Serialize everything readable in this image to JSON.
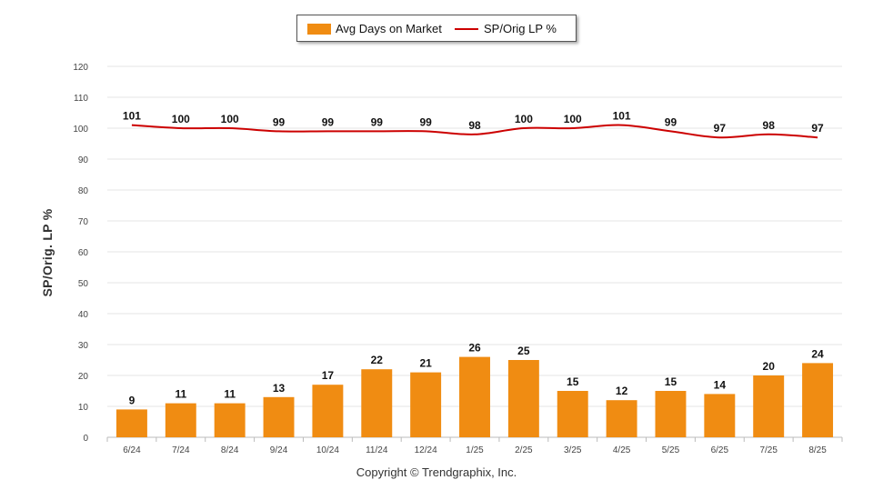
{
  "chart_data": {
    "type": "bar",
    "categories": [
      "6/24",
      "7/24",
      "8/24",
      "9/24",
      "10/24",
      "11/24",
      "12/24",
      "1/25",
      "2/25",
      "3/25",
      "4/25",
      "5/25",
      "6/25",
      "7/25",
      "8/25"
    ],
    "series": [
      {
        "name": "Avg Days on Market",
        "type": "bar",
        "color": "#f08c12",
        "values": [
          9,
          11,
          11,
          13,
          17,
          22,
          21,
          26,
          25,
          15,
          12,
          15,
          14,
          20,
          24
        ]
      },
      {
        "name": "SP/Orig LP %",
        "type": "line",
        "color": "#cc0000",
        "values": [
          101,
          100,
          100,
          99,
          99,
          99,
          99,
          98,
          100,
          100,
          101,
          99,
          97,
          98,
          97
        ]
      }
    ],
    "ylabel": "SP/Orig. LP %",
    "ylim": [
      0,
      120
    ],
    "yticks": [
      0,
      10,
      20,
      30,
      40,
      50,
      60,
      70,
      80,
      90,
      100,
      110,
      120
    ],
    "grid": true,
    "legend_position": "top-center"
  },
  "footer": {
    "copyright": "Copyright © Trendgraphix, Inc."
  }
}
